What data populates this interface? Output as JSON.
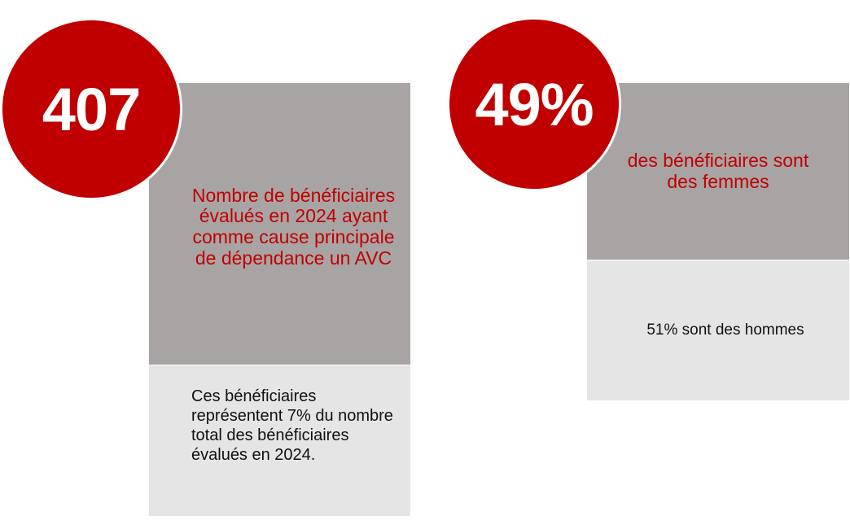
{
  "colors": {
    "accent_red": "#c00000",
    "panel_gray": "#a9a4a4",
    "panel_light": "#e5e5e5"
  },
  "left": {
    "big_number": "407",
    "headline": "Nombre de bénéficiaires évalués en 2024 ayant comme cause principale de dépendance  un AVC",
    "detail": "Ces bénéficiaires représentent 7% du nombre total des bénéficiaires évalués en 2024."
  },
  "right": {
    "big_number": "49%",
    "headline": "des bénéficiaires sont des femmes",
    "detail": "51% sont des hommes"
  }
}
